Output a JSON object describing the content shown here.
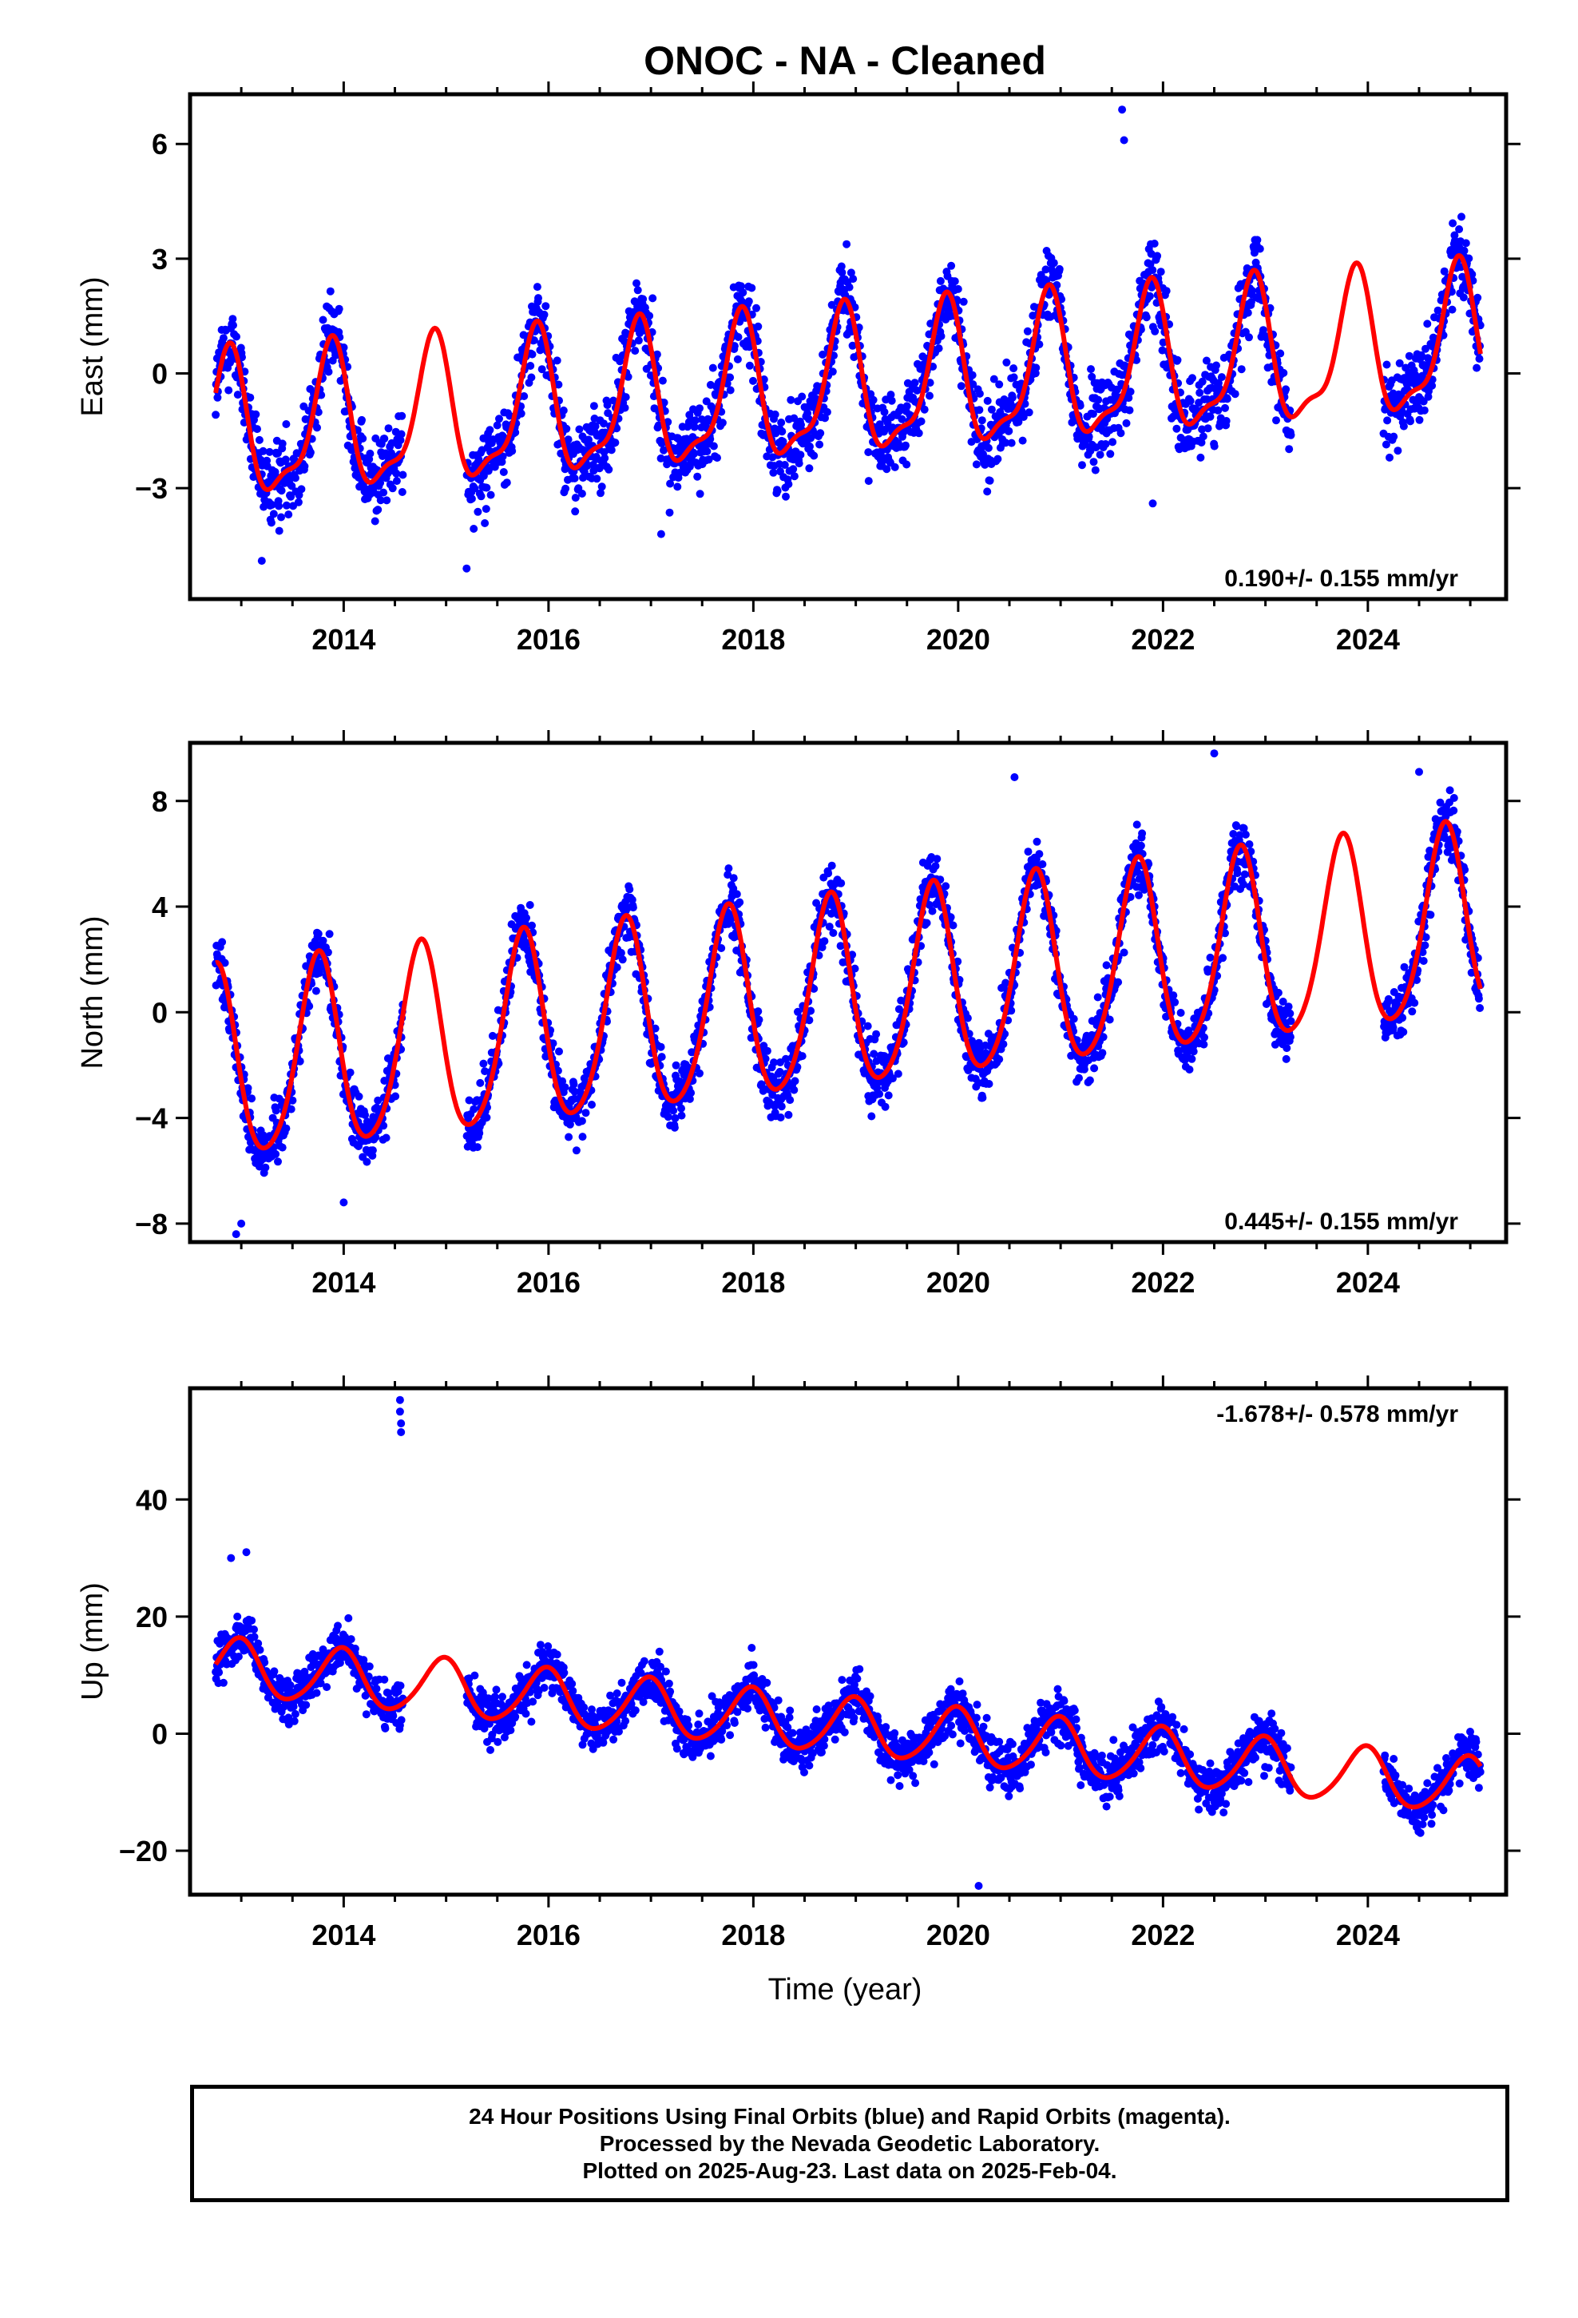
{
  "chart_data": {
    "title": "ONOC  - NA - Cleaned",
    "type": "scatter",
    "xlabel": "Time (year)",
    "x_ticks": [
      "2014",
      "2016",
      "2018",
      "2020",
      "2022",
      "2024"
    ],
    "xlim": [
      2012.5,
      2025.35
    ],
    "data_span": [
      2012.75,
      2025.1
    ],
    "gaps": [
      [
        2014.58,
        2015.2
      ],
      [
        2023.25,
        2024.15
      ]
    ],
    "marker_color": "#0000ff",
    "fit_color": "#ff0000",
    "panels": [
      {
        "name": "east",
        "ylabel": "East (mm)",
        "ylim": [
          -5.9,
          7.3
        ],
        "y_ticks": [
          -3,
          0,
          3,
          6
        ],
        "rate_label": "0.190+/- 0.155 mm/yr",
        "rate_position": "bottom-right",
        "fit": {
          "intercept": -1.6,
          "slope": 0.19,
          "annual_amp": 1.8,
          "annual_phase": 0.62,
          "semi_amp": 0.6,
          "semi_phase": 0.28
        },
        "scatter_sd": 0.9,
        "outliers": [
          [
            2021.6,
            6.9
          ],
          [
            2021.62,
            6.1
          ],
          [
            2013.2,
            -4.9
          ],
          [
            2015.2,
            -5.1
          ],
          [
            2017.1,
            -4.2
          ],
          [
            2021.9,
            -3.4
          ]
        ]
      },
      {
        "name": "north",
        "ylabel": "North (mm)",
        "ylim": [
          -8.7,
          10.2
        ],
        "y_ticks": [
          -8,
          -4,
          0,
          4,
          8
        ],
        "rate_label": "0.445+/- 0.155 mm/yr",
        "rate_position": "bottom-right",
        "fit": {
          "intercept": -2.2,
          "slope": 0.445,
          "annual_amp": 3.6,
          "annual_phase": 0.5,
          "semi_amp": 0.5,
          "semi_phase": 0.15
        },
        "scatter_sd": 1.0,
        "outliers": [
          [
            2012.95,
            -8.4
          ],
          [
            2013.0,
            -8.0
          ],
          [
            2022.5,
            9.8
          ],
          [
            2024.5,
            9.1
          ],
          [
            2020.55,
            8.9
          ],
          [
            2014.0,
            -7.2
          ]
        ]
      },
      {
        "name": "up",
        "ylabel": "Up (mm)",
        "ylim": [
          -27.5,
          59
        ],
        "y_ticks": [
          -20,
          0,
          20,
          40
        ],
        "rate_label": "-1.678+/- 0.578 mm/yr",
        "rate_position": "top-right",
        "fit": {
          "intercept": 11.5,
          "slope": -1.678,
          "annual_amp": 4.8,
          "annual_phase": 0.72,
          "semi_amp": 0.6,
          "semi_phase": 0.4
        },
        "scatter_sd": 3.4,
        "outliers": [
          [
            2014.55,
            57
          ],
          [
            2014.55,
            55
          ],
          [
            2014.56,
            53
          ],
          [
            2014.56,
            51.5
          ],
          [
            2020.2,
            -26
          ],
          [
            2013.05,
            31
          ],
          [
            2012.9,
            30
          ]
        ]
      }
    ]
  },
  "footer": {
    "line1": "24 Hour Positions Using Final Orbits (blue) and Rapid Orbits (magenta).",
    "line2": "Processed by the Nevada Geodetic Laboratory.",
    "line3": "Plotted on 2025-Aug-23. Last data on 2025-Feb-04."
  }
}
